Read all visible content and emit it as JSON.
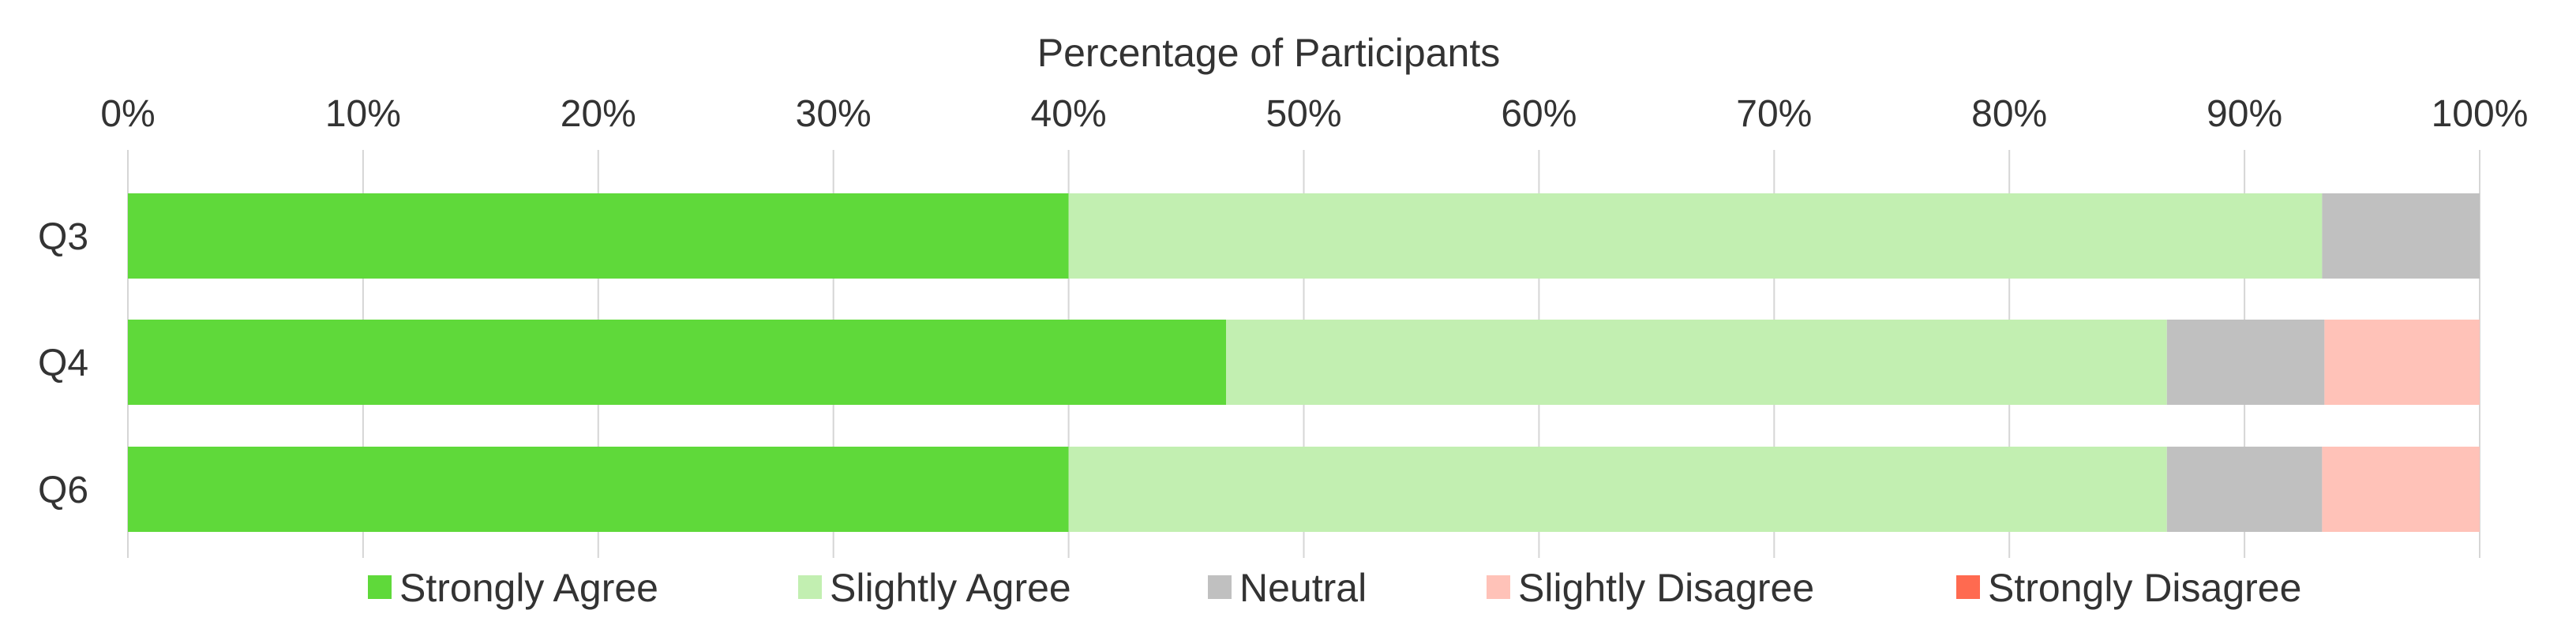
{
  "chart_data": {
    "type": "bar",
    "orientation": "horizontal",
    "stacked": true,
    "xlabel": "Percentage of Participants",
    "ylabel": "",
    "xlim": [
      0,
      100
    ],
    "x_ticks": [
      "0%",
      "10%",
      "20%",
      "30%",
      "40%",
      "50%",
      "60%",
      "70%",
      "80%",
      "90%",
      "100%"
    ],
    "x_axis_position": "top",
    "grid": true,
    "legend_position": "bottom",
    "categories": [
      "Q3",
      "Q4",
      "Q6"
    ],
    "series": [
      {
        "name": "Strongly Agree",
        "color": "#5fd93a",
        "values": [
          40.0,
          46.7,
          40.0
        ]
      },
      {
        "name": "Slightly Agree",
        "color": "#c2efb1",
        "values": [
          53.3,
          40.0,
          46.7
        ]
      },
      {
        "name": "Neutral",
        "color": "#c0c0c0",
        "values": [
          6.7,
          6.7,
          6.6
        ]
      },
      {
        "name": "Slightly Disagree",
        "color": "#ffc2b8",
        "values": [
          0.0,
          6.6,
          6.7
        ]
      },
      {
        "name": "Strongly Disagree",
        "color": "#ff6a50",
        "values": [
          0.0,
          0.0,
          0.0
        ]
      }
    ]
  }
}
